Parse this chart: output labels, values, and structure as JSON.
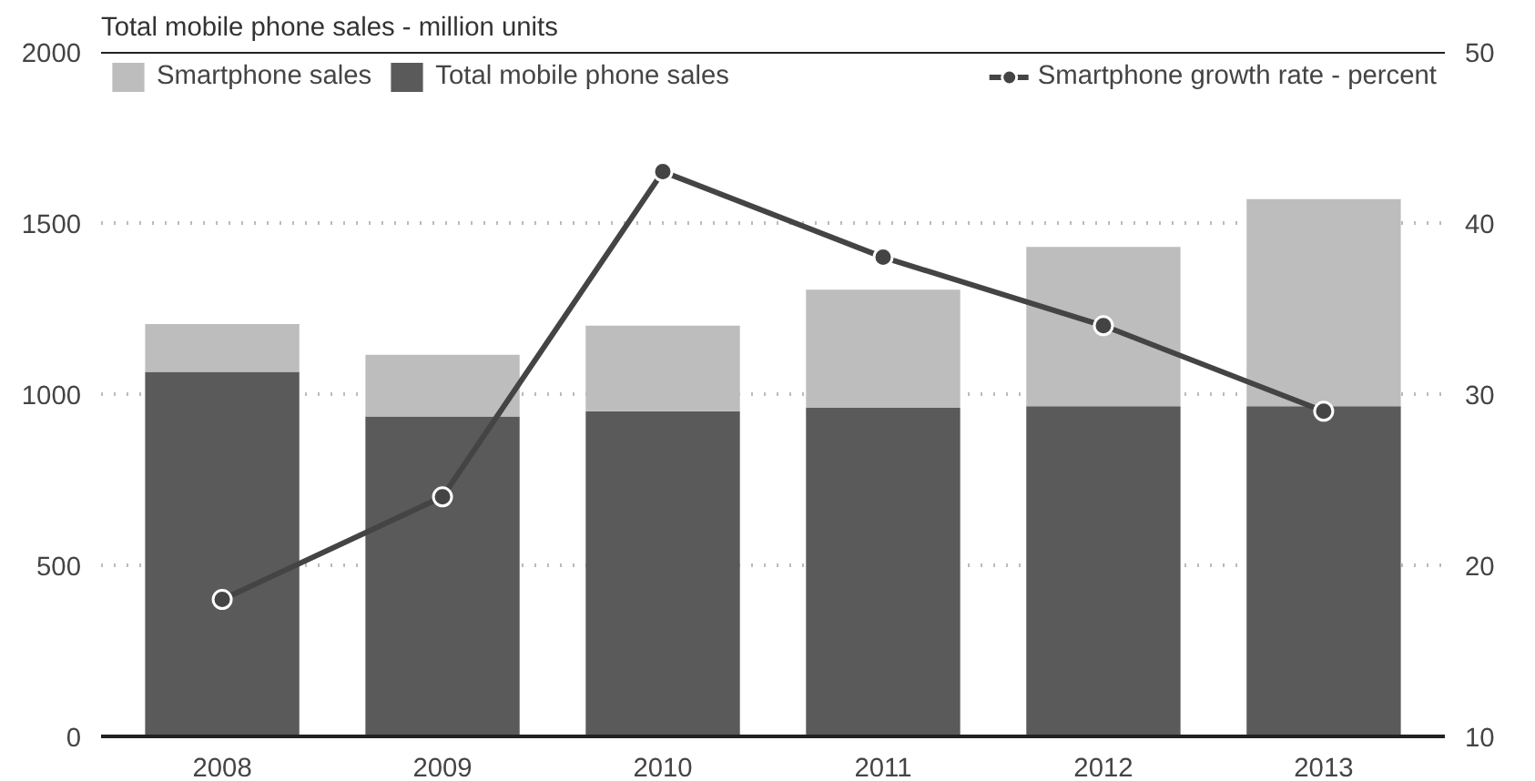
{
  "chart_data": {
    "type": "bar",
    "ylabel": "Total mobile phone sales - million units",
    "categories": [
      "2008",
      "2009",
      "2010",
      "2011",
      "2012",
      "2013"
    ],
    "stacked": true,
    "series": [
      {
        "name": "Total mobile phone sales",
        "color": "#5a5a5a",
        "values": [
          1065,
          935,
          950,
          960,
          965,
          965
        ]
      },
      {
        "name": "Smartphone sales",
        "color": "#bdbdbd",
        "values": [
          140,
          180,
          250,
          345,
          465,
          605
        ]
      },
      {
        "name": "Smartphone growth rate - percent",
        "type": "line",
        "axis": "y2",
        "color": "#444444",
        "values": [
          18,
          24,
          43,
          38,
          34,
          29
        ]
      }
    ],
    "ylim": [
      0,
      2000
    ],
    "yticks": [
      0,
      500,
      1000,
      1500,
      2000
    ],
    "y2lim": [
      10,
      50
    ],
    "y2ticks": [
      10,
      20,
      30,
      40,
      50
    ],
    "grid": "y",
    "legend": "top",
    "marker": "circle"
  }
}
